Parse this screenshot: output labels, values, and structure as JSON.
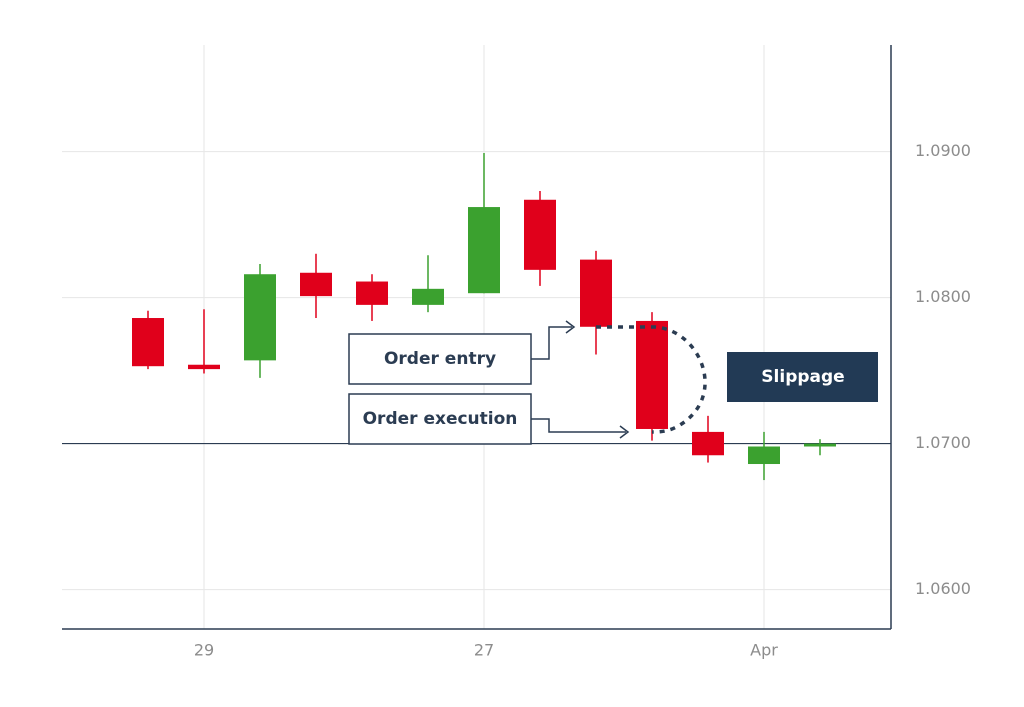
{
  "chart_data": {
    "type": "candlestick",
    "categories": [
      null,
      "29",
      null,
      null,
      null,
      null,
      "27",
      null,
      null,
      null,
      null,
      "Apr",
      null
    ],
    "open": [
      1.0786,
      1.0754,
      1.0757,
      1.0817,
      1.0811,
      1.0795,
      1.0803,
      1.0867,
      1.0826,
      1.0784,
      1.0708,
      1.0686,
      1.0698
    ],
    "high": [
      1.0791,
      1.0792,
      1.0823,
      1.083,
      1.0816,
      1.0829,
      1.0899,
      1.0873,
      1.0832,
      1.079,
      1.0719,
      1.0708,
      1.0703
    ],
    "low": [
      1.0751,
      1.0748,
      1.0745,
      1.0786,
      1.0784,
      1.079,
      1.0803,
      1.0808,
      1.0761,
      1.0702,
      1.0687,
      1.0675,
      1.0692
    ],
    "close": [
      1.0753,
      1.0751,
      1.0816,
      1.0801,
      1.0795,
      1.0806,
      1.0862,
      1.0819,
      1.078,
      1.071,
      1.0692,
      1.0698,
      1.07
    ],
    "up_color": "#3ba12f",
    "down_color": "#e0001b",
    "ylim": [
      1.0573,
      1.0973
    ],
    "yticks": [
      {
        "value": 1.06,
        "label": "1.0600"
      },
      {
        "value": 1.07,
        "label": "1.0700"
      },
      {
        "value": 1.08,
        "label": "1.0800"
      },
      {
        "value": 1.09,
        "label": "1.0900"
      }
    ],
    "hline": 1.07,
    "grid": true,
    "annotations": [
      "Order entry",
      "Order execution",
      "Slippage"
    ]
  }
}
